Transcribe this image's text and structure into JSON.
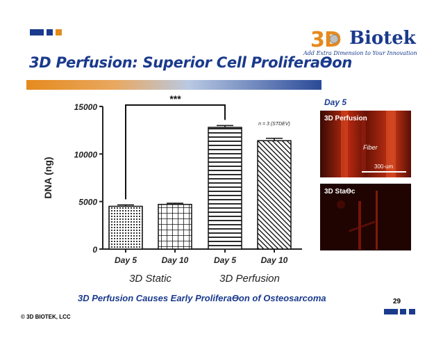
{
  "slide": {
    "title": "3D Perfusion: Superior Cell ProliferaƟon",
    "caption": "3D Perfusion Causes Early ProliferaƟon of Osteosarcoma",
    "page_number": "29",
    "copyright": "© 3D BIOTEK, LCC",
    "accent_color": "#1a3a8c",
    "orange_color": "#e58a1e"
  },
  "logo": {
    "brand": "3D Biotek",
    "brand_word": "Biotek",
    "tagline": "Add Extra Dimension to Your Innovation"
  },
  "images": {
    "day_label": "Day 5",
    "top_label": "3D Perfusion",
    "fiber_label": "Fiber",
    "scale_label": "300-um",
    "bottom_label": "3D StaƟc"
  },
  "chart_data": {
    "type": "bar",
    "ylabel": "DNA (ng)",
    "ylim": [
      0,
      15000
    ],
    "yticks": [
      "0",
      "5000",
      "10000",
      "15000"
    ],
    "categories": [
      "Day 5",
      "Day 10",
      "Day 5",
      "Day 10"
    ],
    "groups": [
      "3D Static",
      "3D Perfusion"
    ],
    "values": [
      4500,
      4700,
      12800,
      11400
    ],
    "errors": [
      150,
      120,
      200,
      250
    ],
    "significance": "***",
    "note": "n = 3 (STDEV)"
  }
}
